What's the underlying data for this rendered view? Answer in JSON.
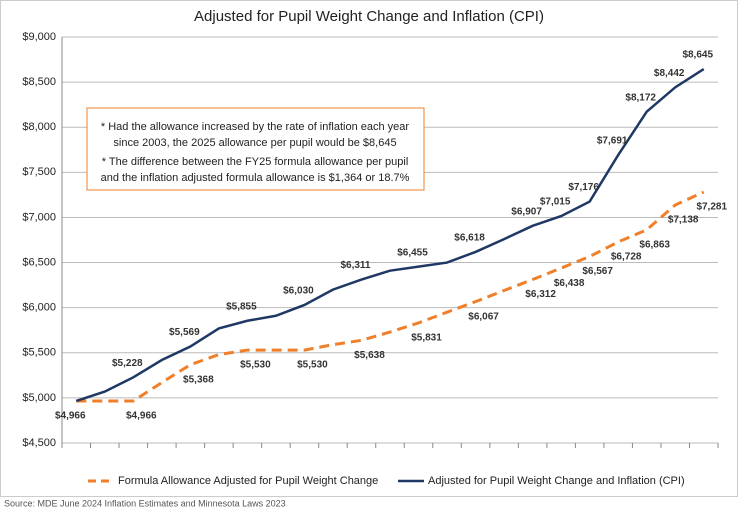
{
  "chart_data": {
    "type": "line",
    "title": "Adjusted for Pupil Weight Change and Inflation (CPI)",
    "annotation": [
      "* Had the allowance increased by the rate of inflation each year",
      "since 2003, the 2025 allowance per pupil would be $8,645",
      "* The difference between the FY25 formula allowance per pupil",
      "and the inflation adjusted formula allowance is $1,364 or 18.7%"
    ],
    "source": "Source: MDE June 2024 Inflation Estimates and Minnesota Laws 2023",
    "categories": [
      null,
      null,
      null,
      null,
      null,
      null,
      null,
      null,
      null,
      null,
      null,
      null,
      null,
      null,
      null,
      null,
      null,
      null,
      null,
      null,
      null,
      null,
      null
    ],
    "series": [
      {
        "name": "Formula Allowance Adjusted for Pupil Weight Change",
        "color": "#f07f2a",
        "dashed": true,
        "values": [
          4966,
          4966,
          4966,
          5170,
          5368,
          5480,
          5530,
          5530,
          5530,
          5590,
          5638,
          5730,
          5831,
          5950,
          6067,
          6190,
          6312,
          6438,
          6567,
          6728,
          6863,
          7138,
          7281
        ],
        "value_labels": [
          null,
          null,
          "$4,966",
          null,
          "$5,368",
          null,
          "$5,530",
          null,
          "$5,530",
          null,
          "$5,638",
          null,
          "$5,831",
          null,
          "$6,067",
          null,
          "$6,312",
          "$6,438",
          "$6,567",
          "$6,728",
          "$6,863",
          "$7,138",
          "$7,281"
        ]
      },
      {
        "name": "Adjusted for Pupil Weight Change and Inflation (CPI)",
        "color": "#1f3864",
        "dashed": false,
        "values": [
          4966,
          5070,
          5228,
          5420,
          5569,
          5770,
          5855,
          5910,
          6030,
          6200,
          6311,
          6410,
          6455,
          6500,
          6618,
          6760,
          6907,
          7015,
          7176,
          7691,
          8172,
          8442,
          8645
        ],
        "value_labels": [
          "$4,966",
          null,
          "$5,228",
          null,
          "$5,569",
          null,
          "$5,855",
          null,
          "$6,030",
          null,
          "$6,311",
          null,
          "$6,455",
          null,
          "$6,618",
          null,
          "$6,907",
          "$7,015",
          "$7,176",
          "$7,691",
          "$8,172",
          "$8,442",
          "$8,645"
        ]
      }
    ],
    "ylim": [
      4500,
      9000
    ],
    "yticks": [
      {
        "value": 4500,
        "label": "$4,500"
      },
      {
        "value": 5000,
        "label": "$5,000"
      },
      {
        "value": 5500,
        "label": "$5,500"
      },
      {
        "value": 6000,
        "label": "$6,000"
      },
      {
        "value": 6500,
        "label": "$6,500"
      },
      {
        "value": 7000,
        "label": "$7,000"
      },
      {
        "value": 7500,
        "label": "$7,500"
      },
      {
        "value": 8000,
        "label": "$8,000"
      },
      {
        "value": 8500,
        "label": "$8,500"
      },
      {
        "value": 9000,
        "label": "$9,000"
      }
    ],
    "grid": true,
    "legend": "bottom"
  }
}
